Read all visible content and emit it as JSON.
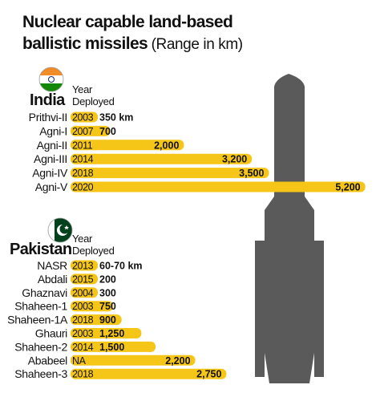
{
  "title": {
    "line1": "Nuclear capable land-based",
    "line2": "ballistic missiles",
    "units": "(Range in km)"
  },
  "colors": {
    "bar": "#f5c518",
    "missile": "#5a5a5a",
    "india_saffron": "#f28c28",
    "india_green": "#138808",
    "pakistan_green": "#01411c"
  },
  "icons": [
    "india-flag-icon",
    "pakistan-flag-icon",
    "missile-silhouette-icon"
  ],
  "chart_data": [
    {
      "type": "bar",
      "country": "India",
      "year_header": [
        "Year",
        "Deployed"
      ],
      "categories": [
        "Prithvi-II",
        "Agni-I",
        "Agni-II",
        "Agni-III",
        "Agni-IV",
        "Agni-V"
      ],
      "years": [
        "2003",
        "2007",
        "2011",
        "2014",
        "2018",
        "2020"
      ],
      "values": [
        350,
        700,
        2000,
        3200,
        3500,
        5200
      ],
      "value_labels": [
        "350 km",
        "700",
        "2,000",
        "3,200",
        "3,500",
        "5,200"
      ]
    },
    {
      "type": "bar",
      "country": "Pakistan",
      "year_header": [
        "Year",
        "Deployed"
      ],
      "categories": [
        "NASR",
        "Abdali",
        "Ghaznavi",
        "Shaheen-1",
        "Shaheen-1A",
        "Ghauri",
        "Shaheen-2",
        "Ababeel",
        "Shaheen-3"
      ],
      "years": [
        "2013",
        "2015",
        "2004",
        "2003",
        "2018",
        "2003",
        "2014",
        "NA",
        "2018"
      ],
      "values": [
        70,
        200,
        300,
        750,
        900,
        1250,
        1500,
        2200,
        2750
      ],
      "value_labels": [
        "60-70 km",
        "200",
        "300",
        "750",
        "900",
        "1,250",
        "1,500",
        "2,200",
        "2,750"
      ]
    }
  ]
}
